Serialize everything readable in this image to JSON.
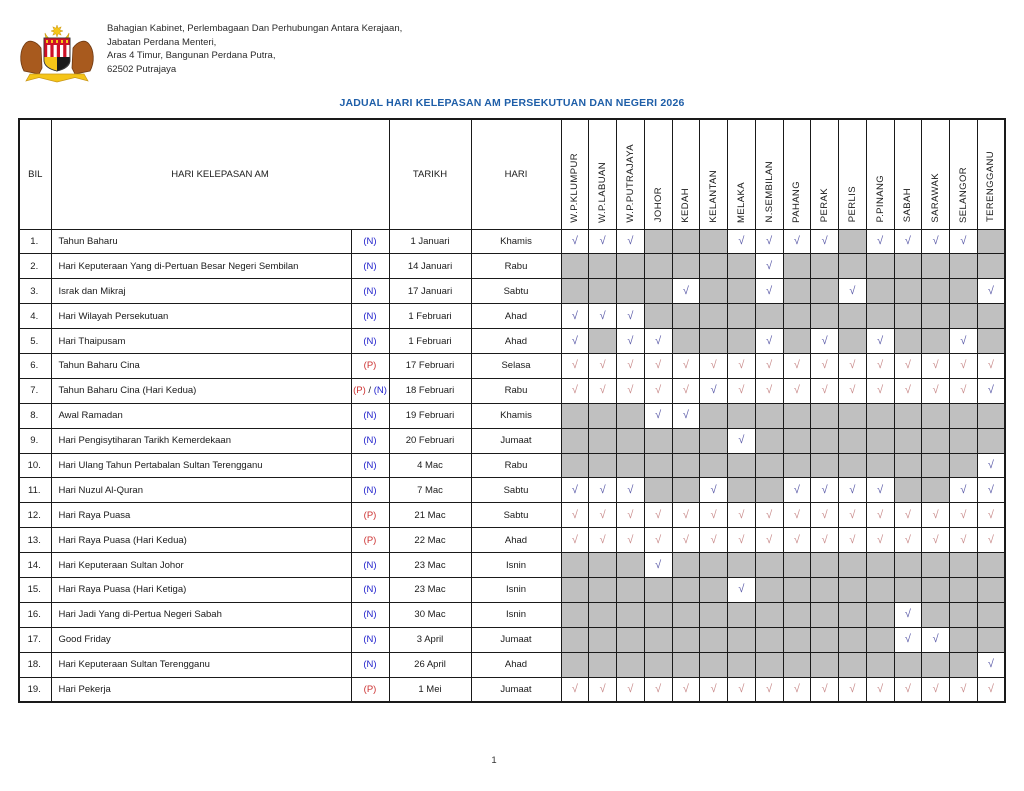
{
  "letterhead": {
    "logo": "jata-negara-malaysia",
    "address_lines": [
      "Bahagian Kabinet, Perlembagaan Dan Perhubungan Antara  Kerajaan,",
      "Jabatan Perdana Menteri,",
      "Aras 4 Timur, Bangunan Perdana Putra,",
      "62502 Putrajaya"
    ]
  },
  "title": "JADUAL HARI KELEPASAN AM PERSEKUTUAN DAN NEGERI 2026",
  "page": {
    "page_number": "1"
  },
  "colors": {
    "title_blue": "#1E5EA8",
    "n_blue": "#2222CC",
    "p_red": "#CC3333",
    "check_n": "#5B5BA8",
    "check_p": "#C98B8B",
    "cell_shade": "#C0C0C0",
    "border": "#1A1A1A"
  },
  "table": {
    "headers": {
      "bil": "BIL",
      "holiday": "HARI KELEPASAN AM",
      "date": "TARIKH",
      "day": "HARI"
    },
    "states": [
      "W.P.KLUMPUR",
      "W.P.LABUAN",
      "W.P.PUTRAJAYA",
      "JOHOR",
      "KEDAH",
      "KELANTAN",
      "MELAKA",
      "N.SEMBILAN",
      "PAHANG",
      "PERAK",
      "PERLIS",
      "P.PINANG",
      "SABAH",
      "SARAWAK",
      "SELANGOR",
      "TERENGGANU"
    ],
    "type_labels": {
      "N": "(N)",
      "P": "(P)",
      "PN_parts": [
        "(P)",
        " / ",
        "(N)"
      ]
    },
    "check_symbol": "√",
    "rows": [
      {
        "bil": "1.",
        "name": "Tahun Baharu",
        "type": "N",
        "date": "1 Januari",
        "day": "Khamis",
        "cells": [
          "N",
          "N",
          "N",
          "",
          "",
          "",
          "N",
          "N",
          "N",
          "N",
          "",
          "N",
          "N",
          "N",
          "N",
          ""
        ]
      },
      {
        "bil": "2.",
        "name": "Hari Keputeraan Yang di-Pertuan Besar Negeri Sembilan",
        "type": "N",
        "date": "14 Januari",
        "day": "Rabu",
        "cells": [
          "",
          "",
          "",
          "",
          "",
          "",
          "",
          "N",
          "",
          "",
          "",
          "",
          "",
          "",
          "",
          ""
        ]
      },
      {
        "bil": "3.",
        "name": "Israk dan Mikraj",
        "type": "N",
        "date": "17 Januari",
        "day": "Sabtu",
        "cells": [
          "",
          "",
          "",
          "",
          "N",
          "",
          "",
          "N",
          "",
          "",
          "N",
          "",
          "",
          "",
          "",
          "N"
        ]
      },
      {
        "bil": "4.",
        "name": "Hari Wilayah Persekutuan",
        "type": "N",
        "date": "1 Februari",
        "day": "Ahad",
        "cells": [
          "N",
          "N",
          "N",
          "",
          "",
          "",
          "",
          "",
          "",
          "",
          "",
          "",
          "",
          "",
          "",
          ""
        ]
      },
      {
        "bil": "5.",
        "name": "Hari Thaipusam",
        "type": "N",
        "date": "1 Februari",
        "day": "Ahad",
        "cells": [
          "N",
          "",
          "N",
          "N",
          "",
          "",
          "",
          "N",
          "",
          "N",
          "",
          "N",
          "",
          "",
          "N",
          ""
        ]
      },
      {
        "bil": "6.",
        "name": "Tahun Baharu Cina",
        "type": "P",
        "date": "17 Februari",
        "day": "Selasa",
        "cells": [
          "P",
          "P",
          "P",
          "P",
          "P",
          "P",
          "P",
          "P",
          "P",
          "P",
          "P",
          "P",
          "P",
          "P",
          "P",
          "P"
        ]
      },
      {
        "bil": "7.",
        "name": "Tahun Baharu Cina (Hari Kedua)",
        "type": "PN",
        "date": "18 Februari",
        "day": "Rabu",
        "cells": [
          "P",
          "P",
          "P",
          "P",
          "P",
          "N",
          "P",
          "P",
          "P",
          "P",
          "P",
          "P",
          "P",
          "P",
          "P",
          "N"
        ]
      },
      {
        "bil": "8.",
        "name": "Awal Ramadan",
        "type": "N",
        "date": "19 Februari",
        "day": "Khamis",
        "cells": [
          "",
          "",
          "",
          "N",
          "N",
          "",
          "",
          "",
          "",
          "",
          "",
          "",
          "",
          "",
          "",
          ""
        ]
      },
      {
        "bil": "9.",
        "name": "Hari Pengisytiharan Tarikh Kemerdekaan",
        "type": "N",
        "date": "20 Februari",
        "day": "Jumaat",
        "cells": [
          "",
          "",
          "",
          "",
          "",
          "",
          "N",
          "",
          "",
          "",
          "",
          "",
          "",
          "",
          "",
          ""
        ]
      },
      {
        "bil": "10.",
        "name": "Hari Ulang Tahun Pertabalan Sultan Terengganu",
        "type": "N",
        "date": "4 Mac",
        "day": "Rabu",
        "cells": [
          "",
          "",
          "",
          "",
          "",
          "",
          "",
          "",
          "",
          "",
          "",
          "",
          "",
          "",
          "",
          "N"
        ]
      },
      {
        "bil": "11.",
        "name": "Hari Nuzul Al-Quran",
        "type": "N",
        "date": "7 Mac",
        "day": "Sabtu",
        "cells": [
          "N",
          "N",
          "N",
          "",
          "",
          "N",
          "",
          "",
          "N",
          "N",
          "N",
          "N",
          "",
          "",
          "N",
          "N"
        ]
      },
      {
        "bil": "12.",
        "name": "Hari Raya Puasa",
        "type": "P",
        "date": "21 Mac",
        "day": "Sabtu",
        "cells": [
          "P",
          "P",
          "P",
          "P",
          "P",
          "P",
          "P",
          "P",
          "P",
          "P",
          "P",
          "P",
          "P",
          "P",
          "P",
          "P"
        ]
      },
      {
        "bil": "13.",
        "name": "Hari Raya Puasa (Hari Kedua)",
        "type": "P",
        "date": "22 Mac",
        "day": "Ahad",
        "cells": [
          "P",
          "P",
          "P",
          "P",
          "P",
          "P",
          "P",
          "P",
          "P",
          "P",
          "P",
          "P",
          "P",
          "P",
          "P",
          "P"
        ]
      },
      {
        "bil": "14.",
        "name": "Hari Keputeraan Sultan Johor",
        "type": "N",
        "date": "23 Mac",
        "day": "Isnin",
        "cells": [
          "",
          "",
          "",
          "N",
          "",
          "",
          "",
          "",
          "",
          "",
          "",
          "",
          "",
          "",
          "",
          ""
        ]
      },
      {
        "bil": "15.",
        "name": "Hari Raya Puasa (Hari Ketiga)",
        "type": "N",
        "date": "23 Mac",
        "day": "Isnin",
        "cells": [
          "",
          "",
          "",
          "",
          "",
          "",
          "N",
          "",
          "",
          "",
          "",
          "",
          "",
          "",
          "",
          ""
        ]
      },
      {
        "bil": "16.",
        "name": "Hari Jadi Yang di-Pertua Negeri Sabah",
        "type": "N",
        "date": "30 Mac",
        "day": "Isnin",
        "cells": [
          "",
          "",
          "",
          "",
          "",
          "",
          "",
          "",
          "",
          "",
          "",
          "",
          "N",
          "",
          "",
          ""
        ]
      },
      {
        "bil": "17.",
        "name": "Good Friday",
        "type": "N",
        "date": "3 April",
        "day": "Jumaat",
        "cells": [
          "",
          "",
          "",
          "",
          "",
          "",
          "",
          "",
          "",
          "",
          "",
          "",
          "N",
          "N",
          "",
          ""
        ]
      },
      {
        "bil": "18.",
        "name": "Hari Keputeraan Sultan Terengganu",
        "type": "N",
        "date": "26 April",
        "day": "Ahad",
        "cells": [
          "",
          "",
          "",
          "",
          "",
          "",
          "",
          "",
          "",
          "",
          "",
          "",
          "",
          "",
          "",
          "N"
        ]
      },
      {
        "bil": "19.",
        "name": "Hari Pekerja",
        "type": "P",
        "date": "1 Mei",
        "day": "Jumaat",
        "cells": [
          "P",
          "P",
          "P",
          "P",
          "P",
          "P",
          "P",
          "P",
          "P",
          "P",
          "P",
          "P",
          "P",
          "P",
          "P",
          "P"
        ]
      }
    ]
  }
}
